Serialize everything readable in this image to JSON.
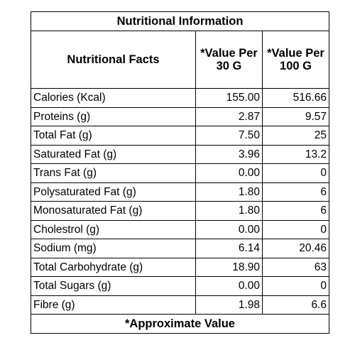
{
  "table": {
    "title": "Nutritional Information",
    "headers": {
      "facts": "Nutritional Facts",
      "per30": "*Value Per 30 G",
      "per100": "*Value Per 100 G"
    },
    "rows": [
      {
        "name": "Calories (Kcal)",
        "per30": "155.00",
        "per100": "516.66"
      },
      {
        "name": "Proteins (g)",
        "per30": "2.87",
        "per100": "9.57"
      },
      {
        "name": "Total Fat (g)",
        "per30": "7.50",
        "per100": "25"
      },
      {
        "name": "Saturated Fat (g)",
        "per30": "3.96",
        "per100": "13.2"
      },
      {
        "name": "Trans Fat (g)",
        "per30": "0.00",
        "per100": "0"
      },
      {
        "name": "Polysaturated Fat (g)",
        "per30": "1.80",
        "per100": "6"
      },
      {
        "name": "Monosaturated Fat (g)",
        "per30": "1.80",
        "per100": "6"
      },
      {
        "name": "Cholestrol (g)",
        "per30": "0.00",
        "per100": "0"
      },
      {
        "name": "Sodium  (mg)",
        "per30": "6.14",
        "per100": "20.46"
      },
      {
        "name": "Total Carbohydrate (g)",
        "per30": "18.90",
        "per100": "63"
      },
      {
        "name": "Total Sugars (g)",
        "per30": "0.00",
        "per100": "0"
      },
      {
        "name": "Fibre (g)",
        "per30": "1.98",
        "per100": "6.6"
      }
    ],
    "footer": "*Approximate Value"
  }
}
